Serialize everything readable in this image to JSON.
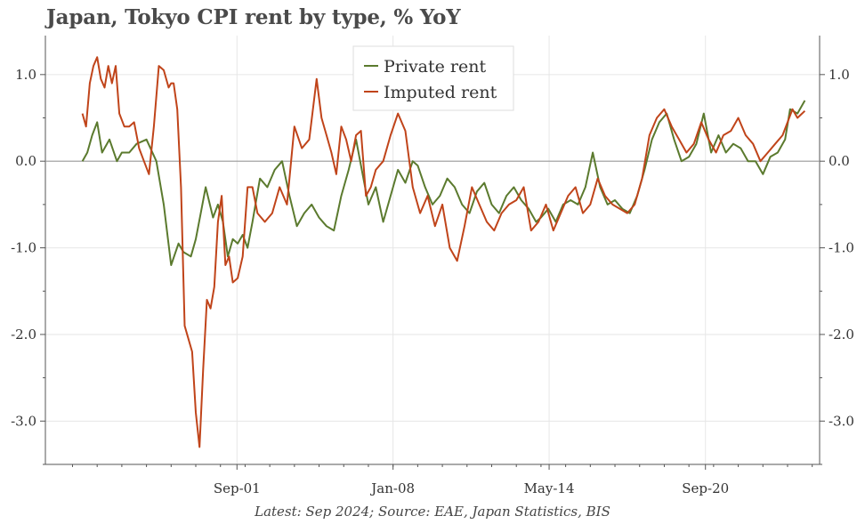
{
  "title": "Japan, Tokyo CPI rent by type, % YoY",
  "footer": "Latest: Sep 2024; Source: EAE, Japan Statistics, BIS",
  "colors": {
    "private": "#5b7a2e",
    "imputed": "#c0441a",
    "grid": "#e6e6e6",
    "zero": "#999999",
    "axis": "#555555"
  },
  "chart_data": {
    "type": "line",
    "title": "Japan, Tokyo CPI rent by type, % YoY",
    "xlabel": "",
    "ylabel": "",
    "ylim": [
      -3.5,
      1.45
    ],
    "xlim": [
      1993.9,
      2025.3
    ],
    "yticks": [
      1.0,
      0.0,
      -1.0,
      -2.0,
      -3.0
    ],
    "ytick_labels": [
      "1.0",
      "0.0",
      "-1.0",
      "-2.0",
      "-3.0"
    ],
    "xticks": [
      2001.67,
      2008.0,
      2014.33,
      2020.67
    ],
    "xtick_labels": [
      "Sep-01",
      "Jan-08",
      "May-14",
      "Sep-20"
    ],
    "legend": [
      "Private rent",
      "Imputed rent"
    ],
    "legend_position": "top-center",
    "series": [
      {
        "name": "Private rent",
        "x": [
          1995.4,
          1995.6,
          1995.8,
          1996.0,
          1996.2,
          1996.5,
          1996.8,
          1997.0,
          1997.3,
          1997.6,
          1998.0,
          1998.4,
          1998.7,
          1999.0,
          1999.3,
          1999.5,
          1999.8,
          2000.0,
          2000.2,
          2000.4,
          2000.7,
          2000.9,
          2001.1,
          2001.3,
          2001.5,
          2001.7,
          2001.9,
          2002.1,
          2002.3,
          2002.6,
          2002.9,
          2003.2,
          2003.5,
          2003.8,
          2004.1,
          2004.4,
          2004.7,
          2005.0,
          2005.3,
          2005.6,
          2005.9,
          2006.2,
          2006.5,
          2006.8,
          2007.0,
          2007.3,
          2007.6,
          2007.9,
          2008.2,
          2008.5,
          2008.8,
          2009.0,
          2009.3,
          2009.6,
          2009.9,
          2010.2,
          2010.5,
          2010.8,
          2011.1,
          2011.4,
          2011.7,
          2012.0,
          2012.3,
          2012.6,
          2012.9,
          2013.2,
          2013.5,
          2013.8,
          2014.0,
          2014.3,
          2014.6,
          2014.9,
          2015.2,
          2015.5,
          2015.8,
          2016.1,
          2016.4,
          2016.7,
          2017.0,
          2017.3,
          2017.6,
          2017.9,
          2018.2,
          2018.5,
          2018.8,
          2019.1,
          2019.4,
          2019.7,
          2020.0,
          2020.3,
          2020.6,
          2020.9,
          2021.2,
          2021.5,
          2021.8,
          2022.1,
          2022.4,
          2022.7,
          2023.0,
          2023.3,
          2023.6,
          2023.9,
          2024.1,
          2024.4,
          2024.7
        ],
        "values": [
          0.0,
          0.1,
          0.3,
          0.45,
          0.1,
          0.25,
          0.0,
          0.1,
          0.1,
          0.2,
          0.25,
          0.0,
          -0.5,
          -1.2,
          -0.95,
          -1.05,
          -1.1,
          -0.9,
          -0.6,
          -0.3,
          -0.65,
          -0.5,
          -0.7,
          -1.1,
          -0.9,
          -0.95,
          -0.85,
          -1.0,
          -0.7,
          -0.2,
          -0.3,
          -0.1,
          0.0,
          -0.4,
          -0.75,
          -0.6,
          -0.5,
          -0.65,
          -0.75,
          -0.8,
          -0.4,
          -0.1,
          0.25,
          -0.2,
          -0.5,
          -0.3,
          -0.7,
          -0.4,
          -0.1,
          -0.25,
          0.0,
          -0.05,
          -0.3,
          -0.5,
          -0.4,
          -0.2,
          -0.3,
          -0.5,
          -0.6,
          -0.35,
          -0.25,
          -0.5,
          -0.6,
          -0.4,
          -0.3,
          -0.45,
          -0.55,
          -0.7,
          -0.65,
          -0.55,
          -0.7,
          -0.5,
          -0.45,
          -0.5,
          -0.3,
          0.1,
          -0.3,
          -0.5,
          -0.45,
          -0.55,
          -0.6,
          -0.4,
          -0.1,
          0.25,
          0.45,
          0.55,
          0.25,
          0.0,
          0.05,
          0.2,
          0.55,
          0.1,
          0.3,
          0.1,
          0.2,
          0.15,
          0.0,
          0.0,
          -0.15,
          0.05,
          0.1,
          0.25,
          0.6,
          0.55,
          0.7
        ]
      },
      {
        "name": "Imputed rent",
        "x": [
          1995.4,
          1995.55,
          1995.7,
          1995.85,
          1996.0,
          1996.15,
          1996.3,
          1996.45,
          1996.6,
          1996.75,
          1996.9,
          1997.1,
          1997.3,
          1997.5,
          1997.7,
          1997.9,
          1998.1,
          1998.3,
          1998.5,
          1998.7,
          1998.9,
          1999.0,
          1999.1,
          1999.25,
          1999.4,
          1999.55,
          1999.7,
          1999.85,
          2000.0,
          2000.15,
          2000.3,
          2000.45,
          2000.6,
          2000.75,
          2000.9,
          2001.05,
          2001.2,
          2001.35,
          2001.5,
          2001.7,
          2001.9,
          2002.1,
          2002.3,
          2002.5,
          2002.8,
          2003.1,
          2003.4,
          2003.7,
          2004.0,
          2004.3,
          2004.6,
          2004.9,
          2005.1,
          2005.3,
          2005.5,
          2005.7,
          2005.9,
          2006.1,
          2006.3,
          2006.5,
          2006.7,
          2006.9,
          2007.1,
          2007.3,
          2007.6,
          2007.9,
          2008.2,
          2008.5,
          2008.8,
          2009.1,
          2009.4,
          2009.7,
          2010.0,
          2010.3,
          2010.6,
          2010.9,
          2011.2,
          2011.5,
          2011.8,
          2012.1,
          2012.4,
          2012.7,
          2013.0,
          2013.3,
          2013.6,
          2013.9,
          2014.2,
          2014.5,
          2014.8,
          2015.1,
          2015.4,
          2015.7,
          2016.0,
          2016.3,
          2016.6,
          2016.9,
          2017.2,
          2017.5,
          2017.8,
          2018.1,
          2018.4,
          2018.7,
          2019.0,
          2019.3,
          2019.6,
          2019.9,
          2020.2,
          2020.5,
          2020.8,
          2021.1,
          2021.4,
          2021.7,
          2022.0,
          2022.3,
          2022.6,
          2022.9,
          2023.2,
          2023.5,
          2023.8,
          2024.0,
          2024.2,
          2024.4,
          2024.7
        ],
        "values": [
          0.55,
          0.4,
          0.9,
          1.1,
          1.2,
          0.95,
          0.85,
          1.1,
          0.9,
          1.1,
          0.55,
          0.4,
          0.4,
          0.45,
          0.15,
          0.0,
          -0.15,
          0.4,
          1.1,
          1.05,
          0.85,
          0.9,
          0.9,
          0.6,
          -0.3,
          -1.9,
          -2.05,
          -2.2,
          -2.9,
          -3.3,
          -2.4,
          -1.6,
          -1.7,
          -1.45,
          -0.7,
          -0.4,
          -1.2,
          -1.1,
          -1.4,
          -1.35,
          -1.1,
          -0.3,
          -0.3,
          -0.6,
          -0.7,
          -0.6,
          -0.3,
          -0.5,
          0.4,
          0.15,
          0.25,
          0.95,
          0.5,
          0.3,
          0.1,
          -0.15,
          0.4,
          0.25,
          0.0,
          0.3,
          0.35,
          -0.4,
          -0.3,
          -0.1,
          0.0,
          0.3,
          0.55,
          0.35,
          -0.3,
          -0.6,
          -0.4,
          -0.75,
          -0.5,
          -1.0,
          -1.15,
          -0.75,
          -0.3,
          -0.5,
          -0.7,
          -0.8,
          -0.6,
          -0.5,
          -0.45,
          -0.3,
          -0.8,
          -0.7,
          -0.5,
          -0.8,
          -0.6,
          -0.4,
          -0.3,
          -0.6,
          -0.5,
          -0.2,
          -0.4,
          -0.5,
          -0.55,
          -0.6,
          -0.5,
          -0.2,
          0.3,
          0.5,
          0.6,
          0.4,
          0.25,
          0.1,
          0.2,
          0.45,
          0.25,
          0.1,
          0.3,
          0.35,
          0.5,
          0.3,
          0.2,
          0.0,
          0.1,
          0.2,
          0.3,
          0.45,
          0.6,
          0.5,
          0.58
        ]
      }
    ]
  }
}
